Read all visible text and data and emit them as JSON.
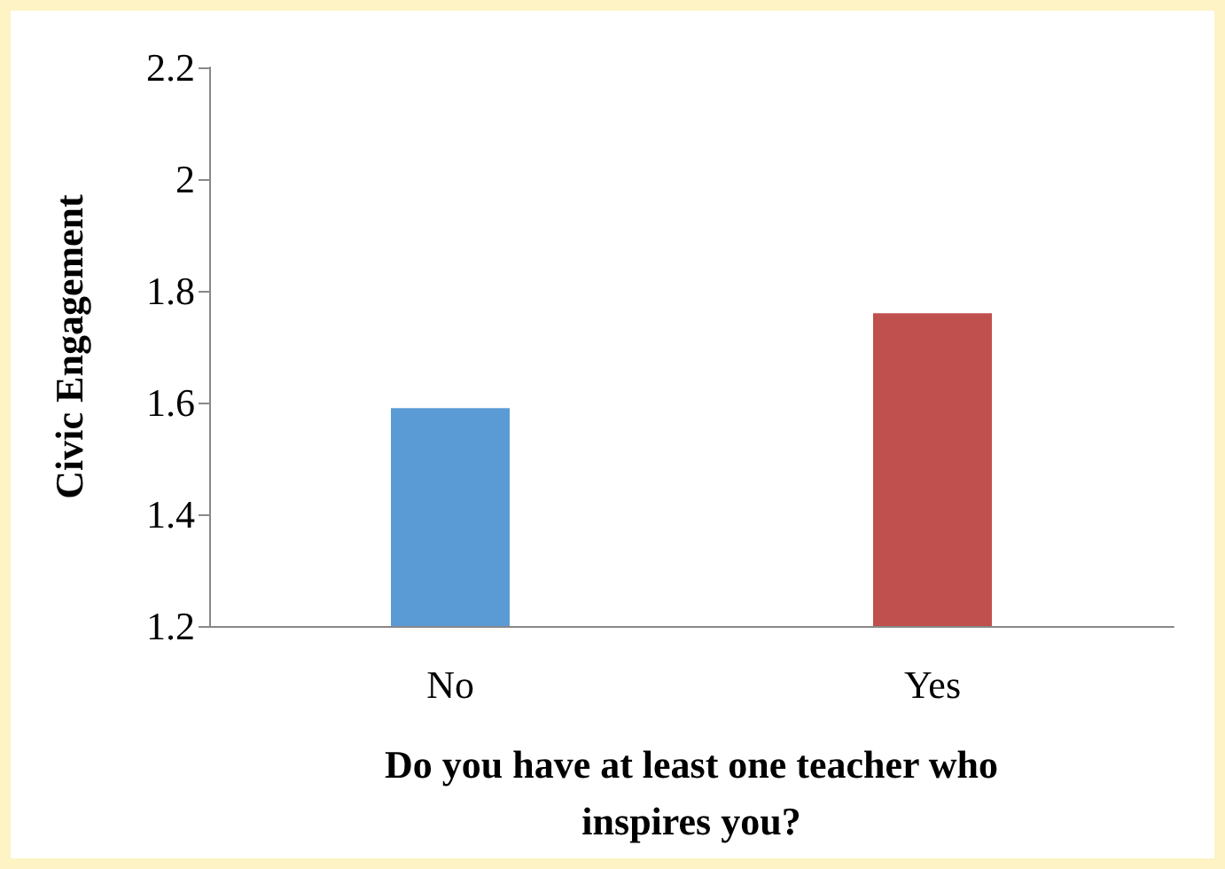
{
  "chart_data": {
    "type": "bar",
    "xlabel": "Do you have at least one teacher who\ninspires you?",
    "ylabel": "Civic Engagement",
    "categories": [
      "No",
      "Yes"
    ],
    "values": [
      1.59,
      1.76
    ],
    "colors": [
      "#5b9bd5",
      "#c0504d"
    ],
    "ylim": [
      1.2,
      2.2
    ],
    "yticks": [
      1.2,
      1.4,
      1.6,
      1.8,
      2,
      2.2
    ],
    "grid": false
  }
}
